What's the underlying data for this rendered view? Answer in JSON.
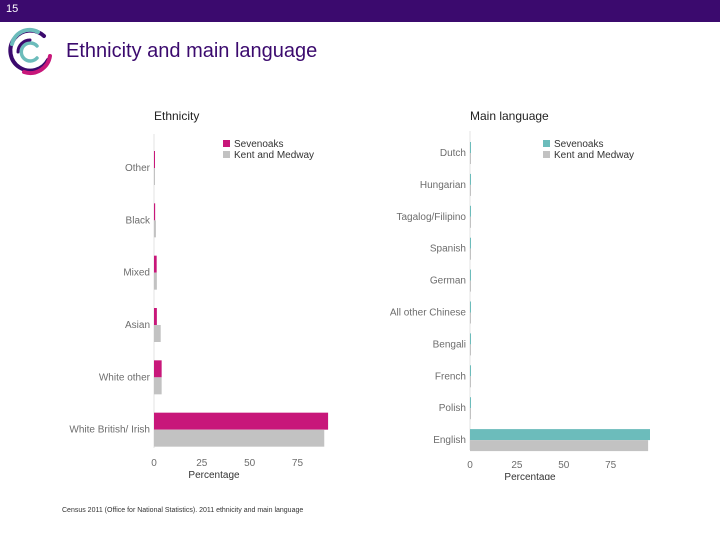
{
  "slide": {
    "number": "15",
    "title": "Ethnicity and main language",
    "source": "Census 2011 (Office for National Statistics). 2011 ethnicity and main language"
  },
  "colors": {
    "topbar": "#3b0a6e",
    "title": "#3b0a6e",
    "sevenoaks_ethnicity": "#c8177a",
    "sevenoaks_language": "#6cbcbb",
    "kent": "#c2c2c2",
    "axis_text": "#6d6d6d"
  },
  "chart_data": [
    {
      "type": "bar",
      "orientation": "horizontal",
      "title": "Ethnicity",
      "categories": [
        "Other",
        "Black",
        "Mixed",
        "Asian",
        "White other",
        "White British/ Irish"
      ],
      "series": [
        {
          "name": "Sevenoaks",
          "values": [
            0.3,
            0.6,
            1.4,
            1.5,
            4.0,
            91.0
          ]
        },
        {
          "name": "Kent and Medway",
          "values": [
            0.4,
            1.0,
            1.5,
            3.5,
            4.0,
            89.0
          ]
        }
      ],
      "xlabel": "Percentage",
      "xlim": [
        0,
        92
      ],
      "xticks": [
        0,
        25,
        50,
        75
      ],
      "legend": "top-right",
      "grid": false
    },
    {
      "type": "bar",
      "orientation": "horizontal",
      "title": "Main language",
      "categories": [
        "Dutch",
        "Hungarian",
        "Tagalog/Filipino",
        "Spanish",
        "German",
        "All other Chinese",
        "Bengali",
        "French",
        "Polish",
        "English"
      ],
      "series": [
        {
          "name": "Sevenoaks",
          "values": [
            0.1,
            0.1,
            0.1,
            0.1,
            0.1,
            0.1,
            0.1,
            0.2,
            0.3,
            96.0
          ]
        },
        {
          "name": "Kent and Medway",
          "values": [
            0.05,
            0.1,
            0.1,
            0.1,
            0.1,
            0.1,
            0.1,
            0.1,
            0.5,
            95.0
          ]
        }
      ],
      "xlabel": "Percentage",
      "xlim": [
        0,
        96
      ],
      "xticks": [
        0,
        25,
        50,
        75
      ],
      "legend": "top-right",
      "grid": false
    }
  ]
}
